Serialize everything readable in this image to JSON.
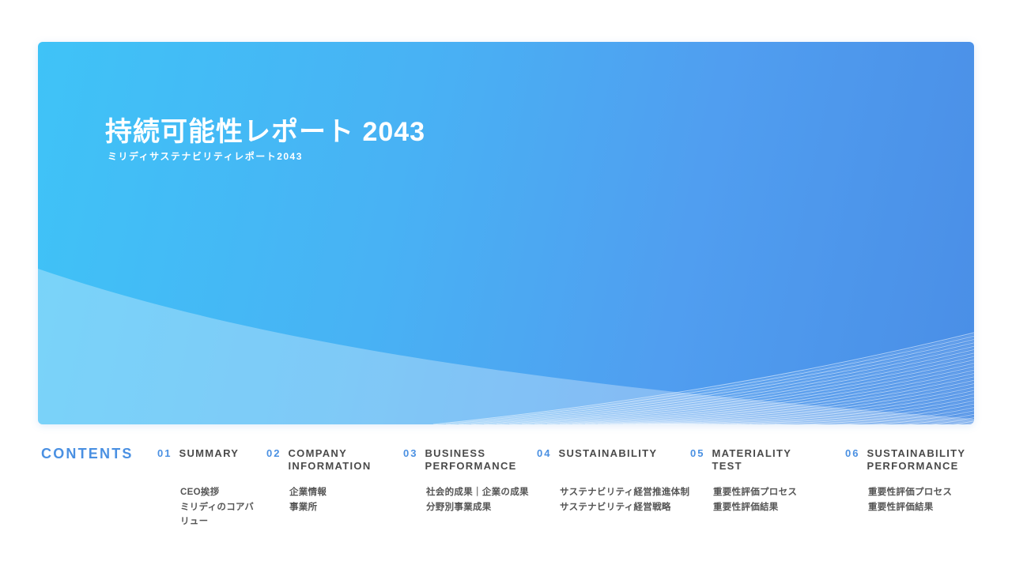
{
  "hero": {
    "title": "持続可能性レポート 2043",
    "subtitle": "ミリディサステナビリティレポート2043"
  },
  "contents": {
    "heading": "CONTENTS",
    "sections": [
      {
        "number": "01",
        "title": "SUMMARY",
        "items": [
          "CEO挨拶",
          "ミリディのコアバリュー"
        ]
      },
      {
        "number": "02",
        "title": "COMPANY INFORMATION",
        "items": [
          "企業情報",
          "事業所"
        ]
      },
      {
        "number": "03",
        "title": "BUSINESS PERFORMANCE",
        "items": [
          "社会的成果｜企業の成果",
          "分野別事業成果"
        ]
      },
      {
        "number": "04",
        "title": "SUSTAINABILITY",
        "items": [
          "サステナビリティ経営推進体制",
          "サステナビリティ経営戦略"
        ]
      },
      {
        "number": "05",
        "title": "MATERIALITY TEST",
        "items": [
          "重要性評価プロセス",
          "重要性評価結果"
        ]
      },
      {
        "number": "06",
        "title": "SUSTAINABILITY PERFORMANCE",
        "items": [
          "重要性評価プロセス",
          "重要性評価結果"
        ]
      }
    ]
  },
  "colors": {
    "accent_blue": "#4a90e2",
    "section_title_text": "#4a4a4a",
    "item_text": "#555555",
    "hero_gradient_start": "#3fc3f7",
    "hero_gradient_end": "#4a8ee6",
    "hero_wave_overlay": "rgba(255,255,255,0.30)",
    "hero_line_decoration": "rgba(255,255,255,0.55)"
  }
}
